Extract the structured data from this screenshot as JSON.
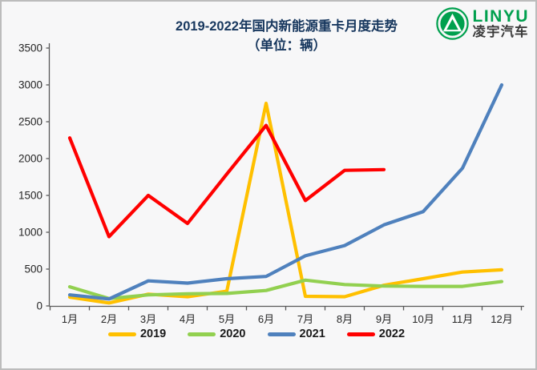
{
  "header": {
    "title_line1": "2019-2022年国内新能源重卡月度走势",
    "title_line2": "（单位：辆）",
    "logo": {
      "brand_latin": "LINYU",
      "brand_cn": "凌宇汽车",
      "brand_color": "#00A04E"
    }
  },
  "chart_data": {
    "type": "line",
    "title": "2019-2022年国内新能源重卡月度走势",
    "subtitle": "（单位：辆）",
    "unit": "辆",
    "categories": [
      "1月",
      "2月",
      "3月",
      "4月",
      "5月",
      "6月",
      "7月",
      "8月",
      "9月",
      "10月",
      "11月",
      "12月"
    ],
    "series": [
      {
        "name": "2019",
        "color": "#FFC000",
        "values": [
          120,
          40,
          160,
          125,
          200,
          2750,
          130,
          125,
          280,
          370,
          460,
          490
        ]
      },
      {
        "name": "2020",
        "color": "#92D050",
        "values": [
          260,
          100,
          150,
          165,
          170,
          210,
          350,
          290,
          270,
          265,
          265,
          330
        ]
      },
      {
        "name": "2021",
        "color": "#4F81BD",
        "values": [
          150,
          95,
          340,
          310,
          370,
          400,
          680,
          820,
          1100,
          1280,
          1870,
          3000
        ]
      },
      {
        "name": "2022",
        "color": "#FF0000",
        "values": [
          2280,
          940,
          1500,
          1120,
          1790,
          2450,
          1430,
          1840,
          1850,
          null,
          null,
          null
        ]
      }
    ],
    "ylim": [
      0,
      3500
    ],
    "yticks": [
      0,
      500,
      1000,
      1500,
      2000,
      2500,
      3000,
      3500
    ],
    "grid": false,
    "legend_position": "bottom"
  },
  "colors": {
    "title": "#17375E",
    "axis": "#595959",
    "tick_label": "#262626",
    "background": "#f7f7f8"
  }
}
